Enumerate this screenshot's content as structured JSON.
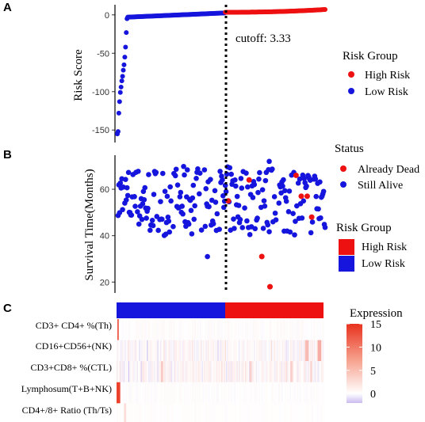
{
  "panels": {
    "A": {
      "letter": "A",
      "ylabel": "Risk Score",
      "cutoff_label": "cutoff: 3.33",
      "yticks": [
        "0",
        "-50",
        "-100",
        "-150"
      ]
    },
    "B": {
      "letter": "B",
      "ylabel": "Survival Time(Months)",
      "yticks": [
        "60",
        "40",
        "20"
      ]
    },
    "C": {
      "letter": "C",
      "rows": [
        "CD3+ CD4+ %(Th)",
        "CD16+CD56+(NK)",
        "CD3+CD8+ %(CTL)",
        "Lymphosum(T+B+NK)",
        "CD4+/8+ Ratio (Th/Ts)"
      ]
    }
  },
  "legends": {
    "risk_a": {
      "title": "Risk Group",
      "items": [
        "High Risk",
        "Low Risk"
      ]
    },
    "status": {
      "title": "Status",
      "items": [
        "Already Dead",
        "Still Alive"
      ]
    },
    "risk_b": {
      "title": "Risk Group",
      "items": [
        "High Risk",
        "Low Risk"
      ]
    },
    "expression": {
      "title": "Expression",
      "ticks": [
        "15",
        "10",
        "5",
        "0"
      ]
    }
  },
  "colors": {
    "high": "#ee1111",
    "low": "#1515dd"
  },
  "chart_data": [
    {
      "type": "scatter",
      "panel": "A",
      "ylabel": "Risk Score",
      "ylim": [
        -158,
        7
      ],
      "n_patients": 280,
      "cutoff": 3.33,
      "cutoff_index": 145,
      "series": [
        {
          "name": "High Risk",
          "color": "#ee1111",
          "index_range": [
            146,
            280
          ],
          "y_range": [
            3.4,
            7
          ]
        },
        {
          "name": "Low Risk",
          "color": "#1515dd",
          "index_range": [
            1,
            145
          ],
          "first_values": [
            -155,
            -152,
            -128,
            -113,
            -101,
            -94,
            -86,
            -80,
            -72,
            -65,
            -55,
            -42,
            -23,
            -5
          ]
        }
      ]
    },
    {
      "type": "scatter",
      "panel": "B",
      "ylabel": "Survival Time(Months)",
      "ylim": [
        16,
        74
      ],
      "series": [
        {
          "name": "Still Alive",
          "color": "#1515dd",
          "y_range": [
            40,
            70
          ]
        },
        {
          "name": "Already Dead",
          "color": "#ee1111",
          "points": [
            [
              150,
              55
            ],
            [
              178,
              64
            ],
            [
              195,
              31
            ],
            [
              206,
              18
            ],
            [
              241,
              66
            ],
            [
              248,
              57
            ],
            [
              256,
              57
            ],
            [
              262,
              48
            ]
          ]
        }
      ]
    },
    {
      "type": "heatmap",
      "panel": "C",
      "rows": [
        "CD3+ CD4+ %(Th)",
        "CD16+CD56+(NK)",
        "CD3+CD8+ %(CTL)",
        "Lymphosum(T+B+NK)",
        "CD4+/8+ Ratio (Th/Ts)"
      ],
      "colorbar": {
        "min": -2,
        "max": 15,
        "ticks": [
          0,
          5,
          10,
          15
        ]
      },
      "groups": [
        {
          "name": "Low Risk",
          "count": 145
        },
        {
          "name": "High Risk",
          "count": 135
        }
      ]
    }
  ]
}
